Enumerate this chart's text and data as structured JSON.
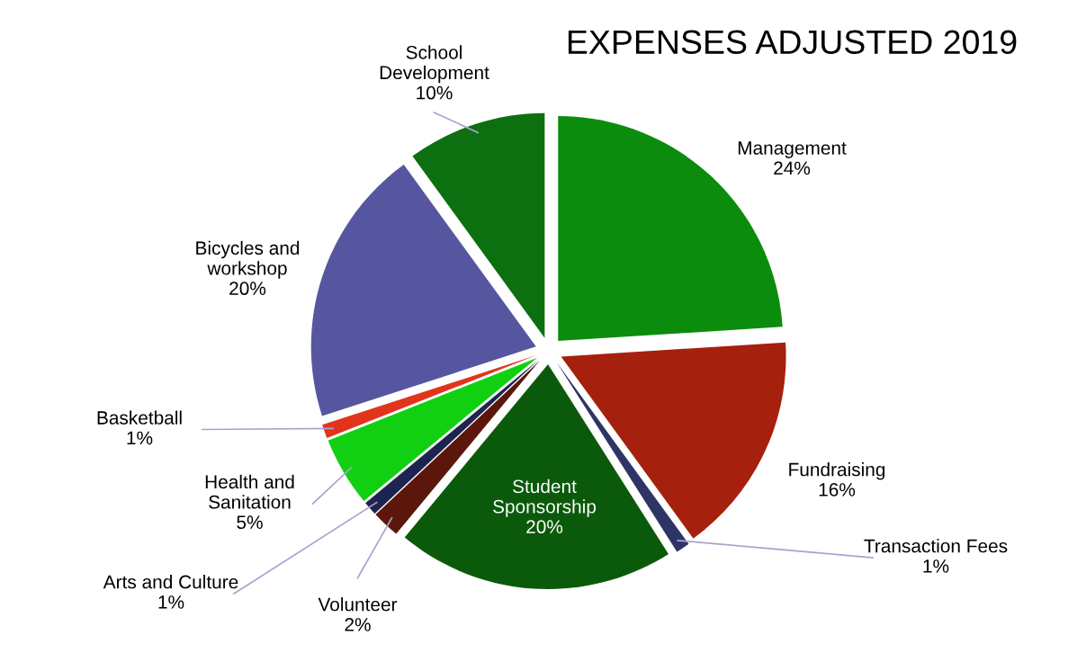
{
  "chart_data": {
    "type": "pie",
    "title": "EXPENSES ADJUSTED 2019",
    "categories": [
      "Management",
      "Fundraising",
      "Transaction Fees",
      "Student\nSponsorship",
      "Volunteer",
      "Arts and Culture",
      "Health and\nSanitation",
      "Basketball",
      "Bicycles and\nworkshop",
      "School\nDevelopment"
    ],
    "values": [
      24,
      16,
      1,
      20,
      2,
      1,
      5,
      1,
      20,
      10
    ],
    "value_labels": [
      "24%",
      "16%",
      "1%",
      "20%",
      "2%",
      "1%",
      "5%",
      "1%",
      "20%",
      "10%"
    ],
    "colors": [
      "#0c8c0c",
      "#a6200e",
      "#2e3566",
      "#0b5a0b",
      "#5c170c",
      "#1e2450",
      "#11d011",
      "#e0351c",
      "#5656a0",
      "#0c7010"
    ]
  }
}
